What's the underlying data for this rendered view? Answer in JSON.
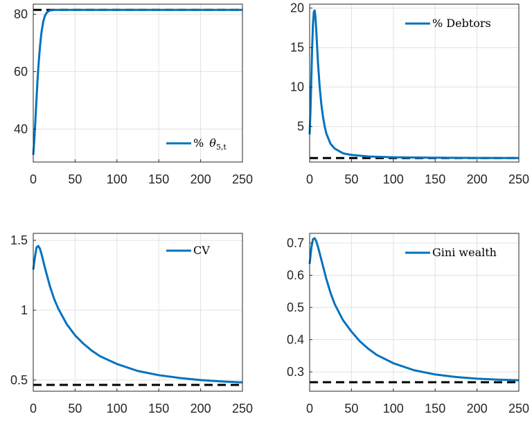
{
  "chart_data": [
    {
      "type": "line",
      "xlim": [
        0,
        250
      ],
      "ylim": [
        28.5,
        83.5
      ],
      "xticks": [
        "0",
        "50",
        "100",
        "150",
        "200",
        "250"
      ],
      "yticks": [
        40,
        60,
        80
      ],
      "ytick_labels": [
        "40",
        "60",
        "80"
      ],
      "grid": true,
      "legend_position": "bottom-right",
      "legend_label": "% θ5,t",
      "series_color": "#0072bd",
      "reference_line": 81.5,
      "series": [
        {
          "name": "% θ5,t",
          "x": [
            0,
            1,
            2,
            3,
            4,
            5,
            6,
            7,
            8,
            9,
            10,
            12,
            14,
            16,
            18,
            20,
            25,
            30,
            50,
            100,
            150,
            200,
            250
          ],
          "y": [
            31,
            35,
            40,
            45.5,
            51,
            56.5,
            61,
            65,
            68.5,
            71.5,
            74,
            77.5,
            79.5,
            80.5,
            81,
            81.3,
            81.5,
            81.5,
            81.5,
            81.5,
            81.5,
            81.5,
            81.5
          ]
        }
      ]
    },
    {
      "type": "line",
      "xlim": [
        0,
        250
      ],
      "ylim": [
        0.5,
        20.5
      ],
      "xticks": [
        "0",
        "50",
        "100",
        "150",
        "200",
        "250"
      ],
      "yticks": [
        5,
        10,
        15,
        20
      ],
      "ytick_labels": [
        "5",
        "10",
        "15",
        "20"
      ],
      "grid": true,
      "legend_position": "top-right",
      "legend_label": "% Debtors",
      "series_color": "#0072bd",
      "reference_line": 1.0,
      "series": [
        {
          "name": "% Debtors",
          "x": [
            0,
            1,
            2,
            3,
            4,
            5,
            6,
            7,
            8,
            9,
            10,
            12,
            14,
            16,
            18,
            20,
            25,
            30,
            40,
            50,
            70,
            100,
            150,
            200,
            250
          ],
          "y": [
            4.0,
            7.0,
            11.0,
            15.0,
            18.0,
            19.5,
            19.7,
            18.8,
            17.0,
            15.0,
            13.0,
            10.0,
            7.8,
            6.2,
            5.0,
            4.1,
            2.8,
            2.2,
            1.6,
            1.4,
            1.2,
            1.1,
            1.05,
            1.02,
            1.0
          ]
        }
      ]
    },
    {
      "type": "line",
      "xlim": [
        0,
        250
      ],
      "ylim": [
        0.42,
        1.55
      ],
      "xticks": [
        "0",
        "50",
        "100",
        "150",
        "200",
        "250"
      ],
      "yticks": [
        0.5,
        1,
        1.5
      ],
      "ytick_labels": [
        "0.5",
        "1",
        "1.5"
      ],
      "grid": true,
      "legend_position": "top-right",
      "legend_label": "CV",
      "series_color": "#0072bd",
      "reference_line": 0.465,
      "series": [
        {
          "name": "CV",
          "x": [
            0,
            2,
            4,
            6,
            8,
            10,
            12,
            15,
            20,
            25,
            30,
            40,
            50,
            60,
            70,
            80,
            100,
            125,
            150,
            175,
            200,
            225,
            250
          ],
          "y": [
            1.29,
            1.38,
            1.45,
            1.46,
            1.44,
            1.4,
            1.35,
            1.28,
            1.17,
            1.08,
            1.01,
            0.9,
            0.82,
            0.76,
            0.71,
            0.67,
            0.615,
            0.565,
            0.535,
            0.515,
            0.5,
            0.49,
            0.483
          ]
        }
      ]
    },
    {
      "type": "line",
      "xlim": [
        0,
        250
      ],
      "ylim": [
        0.24,
        0.73
      ],
      "xticks": [
        "0",
        "50",
        "100",
        "150",
        "200",
        "250"
      ],
      "yticks": [
        0.3,
        0.4,
        0.5,
        0.6,
        0.7
      ],
      "ytick_labels": [
        "0.3",
        "0.4",
        "0.5",
        "0.6",
        "0.7"
      ],
      "grid": true,
      "legend_position": "top-right",
      "legend_label": "Gini wealth",
      "series_color": "#0072bd",
      "reference_line": 0.268,
      "series": [
        {
          "name": "Gini wealth",
          "x": [
            0,
            2,
            4,
            6,
            8,
            10,
            12,
            15,
            20,
            25,
            30,
            40,
            50,
            60,
            70,
            80,
            100,
            125,
            150,
            175,
            200,
            225,
            250
          ],
          "y": [
            0.635,
            0.685,
            0.712,
            0.715,
            0.705,
            0.688,
            0.668,
            0.638,
            0.588,
            0.545,
            0.51,
            0.46,
            0.425,
            0.395,
            0.372,
            0.353,
            0.327,
            0.305,
            0.292,
            0.284,
            0.279,
            0.276,
            0.274
          ]
        }
      ]
    }
  ]
}
